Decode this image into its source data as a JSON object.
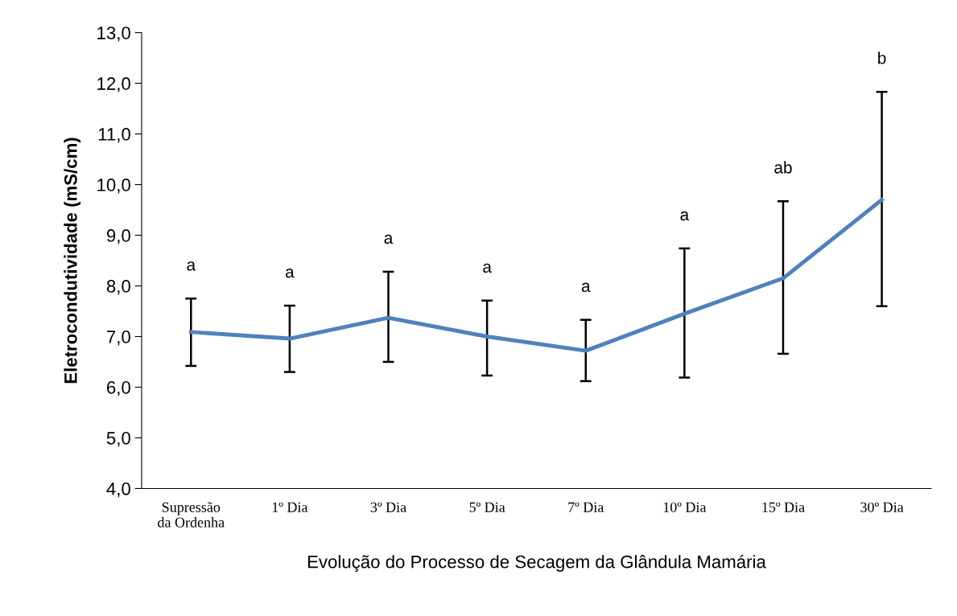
{
  "chart_data": {
    "type": "line",
    "xlabel": "Evolução do Processo de Secagem da Glândula Mamária",
    "ylabel": "Eletrocondutividade (mS/cm)",
    "categories": [
      "Supressão\nda Ordenha",
      "1º Dia",
      "3º Dia",
      "5º Dia",
      "7º Dia",
      "10º Dia",
      "15º Dia",
      "30º Dia"
    ],
    "series": [
      {
        "color": "#4f81bd",
        "values": [
          7.09,
          6.96,
          7.37,
          7.0,
          6.72,
          7.45,
          8.15,
          9.7
        ],
        "errors": [
          [
            6.42,
            7.75
          ],
          [
            6.3,
            7.61
          ],
          [
            6.5,
            8.28
          ],
          [
            6.23,
            7.71
          ],
          [
            6.12,
            7.33
          ],
          [
            6.19,
            8.74
          ],
          [
            6.66,
            9.67
          ],
          [
            7.6,
            11.83
          ]
        ]
      }
    ],
    "ylim": [
      4.0,
      13.0
    ],
    "yticks": [
      {
        "value": 4.0,
        "label": "4,0"
      },
      {
        "value": 5.0,
        "label": "5,0"
      },
      {
        "value": 6.0,
        "label": "6,0"
      },
      {
        "value": 7.0,
        "label": "7,0"
      },
      {
        "value": 8.0,
        "label": "8,0"
      },
      {
        "value": 9.0,
        "label": "9,0"
      },
      {
        "value": 10.0,
        "label": "10,0"
      },
      {
        "value": 11.0,
        "label": "11,0"
      },
      {
        "value": 12.0,
        "label": "12,0"
      },
      {
        "value": 13.0,
        "label": "13,0"
      }
    ],
    "annotations": [
      "a",
      "a",
      "a",
      "a",
      "a",
      "a",
      "ab",
      "b"
    ],
    "grid": false,
    "legend": false,
    "marker": "none",
    "line_style": "solid"
  }
}
